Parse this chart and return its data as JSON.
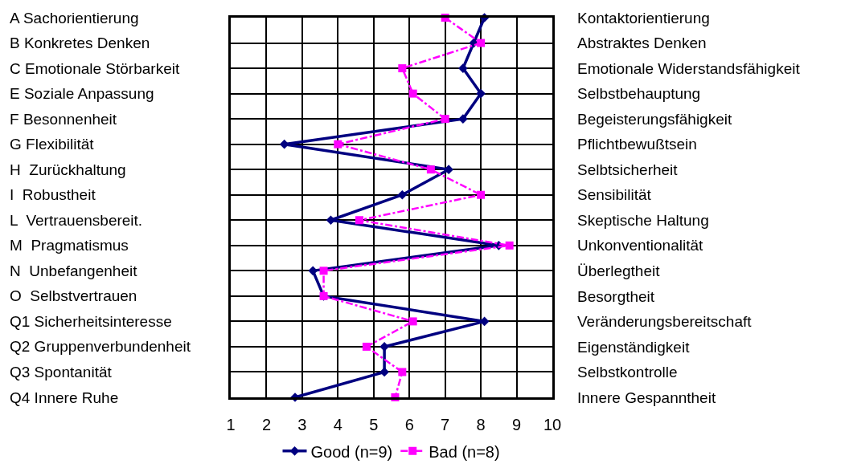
{
  "chart_data": {
    "type": "line",
    "orientation": "horizontal",
    "categories": [
      "A Sachorientierung",
      "B Konkretes Denken",
      "C Emotionale Störbarkeit",
      "E Soziale Anpassung",
      "F Besonnenheit",
      "G Flexibilität",
      "H  Zurückhaltung",
      "I  Robustheit",
      "L  Vertrauensbereit.",
      "M  Pragmatismus",
      "N  Unbefangenheit",
      "O  Selbstvertrauen",
      "Q1 Sicherheitsinteresse",
      "Q2 Gruppenverbundenheit",
      "Q3 Spontanität",
      "Q4 Innere Ruhe"
    ],
    "y2_categories": [
      "Kontaktorientierung",
      "Abstraktes Denken",
      "Emotionale Widerstandsfähigkeit",
      "Selbstbehauptung",
      "Begeisterungsfähigkeit",
      "Pflichtbewußtsein",
      "Selbtsicherheit",
      "Sensibilität",
      "Skeptische Haltung",
      "Unkonventionalität",
      "Überlegtheit",
      "Besorgtheit",
      "Veränderungsbereitschaft",
      "Eigenständigkeit",
      "Selbstkontrolle",
      "Innere Gespanntheit"
    ],
    "series": [
      {
        "name": "Good (n=9)",
        "color": "#000080",
        "marker": "diamond",
        "line_style": "solid",
        "values": [
          8.1,
          7.8,
          7.5,
          8.0,
          7.5,
          2.5,
          7.1,
          5.8,
          3.8,
          8.5,
          3.3,
          3.6,
          8.1,
          5.3,
          5.3,
          2.8
        ]
      },
      {
        "name": "Bad (n=8)",
        "color": "#ff00ff",
        "marker": "square",
        "line_style": "dashed",
        "values": [
          7.0,
          8.0,
          5.8,
          6.1,
          7.0,
          4.0,
          6.6,
          8.0,
          4.6,
          8.8,
          3.6,
          3.6,
          6.1,
          4.8,
          5.8,
          5.6
        ]
      }
    ],
    "xlim": [
      1,
      10
    ],
    "xticks": [
      1,
      2,
      3,
      4,
      5,
      6,
      7,
      8,
      9,
      10
    ],
    "grid": true,
    "legend": "bottom"
  }
}
